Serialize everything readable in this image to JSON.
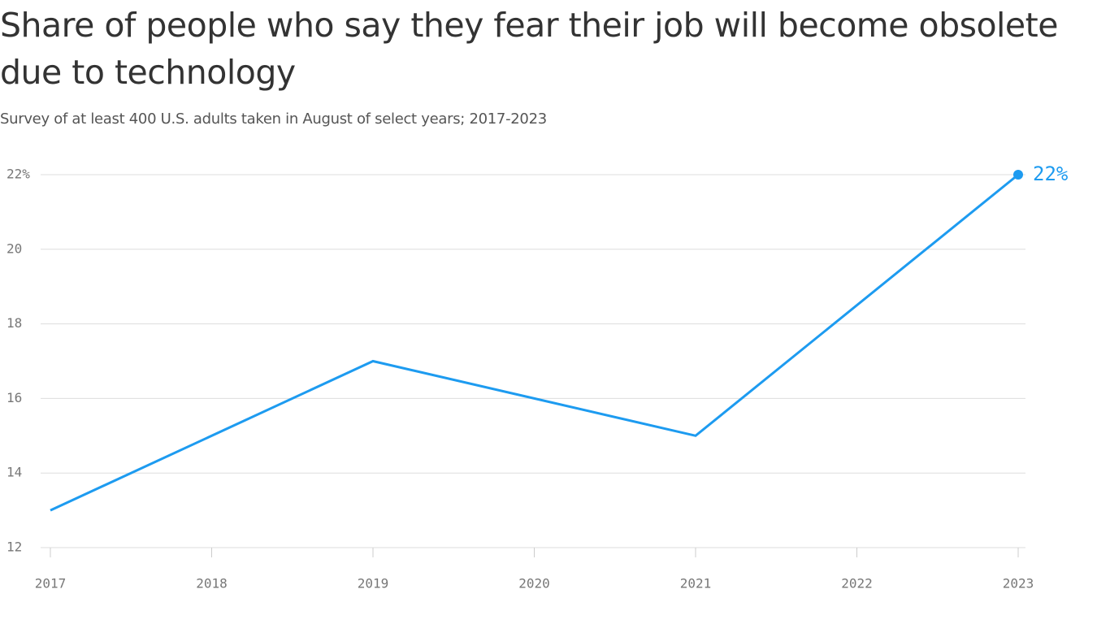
{
  "chart_data": {
    "type": "line",
    "title": "Share of people who say they fear their job will become obsolete due to technology",
    "subtitle": "Survey of at least 400 U.S. adults taken in August of select years; 2017-2023",
    "x": [
      2017,
      2019,
      2021,
      2023
    ],
    "series": [
      {
        "values": [
          13,
          17,
          15,
          22
        ],
        "value_labels": [
          null,
          null,
          null,
          "22%"
        ],
        "color": "#1d9bf0"
      }
    ],
    "xlim": [
      2017,
      2023
    ],
    "xticks": [
      2017,
      2018,
      2019,
      2020,
      2021,
      2022,
      2023
    ],
    "ylim": [
      12,
      22
    ],
    "yticks": [
      12,
      14,
      16,
      18,
      20,
      {
        "value": 22,
        "label": "22%"
      }
    ],
    "grid": true
  }
}
